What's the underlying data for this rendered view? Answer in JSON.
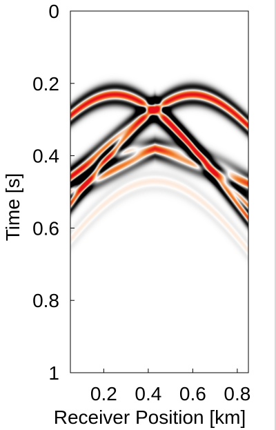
{
  "chart_data": {
    "type": "heatmap",
    "title": "",
    "xlabel": "Receiver Position [km]",
    "ylabel": "Time [s]",
    "xlim": [
      0.05,
      0.85
    ],
    "ylim": [
      1.0,
      0.0
    ],
    "x_ticks": [
      0.2,
      0.4,
      0.6,
      0.8
    ],
    "x_tick_labels": [
      "0.2",
      "0.4",
      "0.6",
      "0.8"
    ],
    "y_ticks": [
      0,
      0.2,
      0.4,
      0.6,
      0.8,
      1
    ],
    "y_tick_labels": [
      "0",
      "0.2",
      "0.4",
      "0.6",
      "0.8",
      "1"
    ],
    "grid": false,
    "colormap": {
      "negative": "#000000",
      "zero": "#ffffff",
      "positive_mid": "#f07e2a",
      "positive_peak": "#e8101a"
    },
    "events": [
      {
        "kind": "hyperbola",
        "apex_x": 0.25,
        "apex_t": 0.23,
        "velocity_km_s": 2.3,
        "amplitude": 1.0
      },
      {
        "kind": "hyperbola",
        "apex_x": 0.6,
        "apex_t": 0.23,
        "velocity_km_s": 2.3,
        "amplitude": 1.0
      },
      {
        "kind": "linear",
        "x_start": 0.05,
        "t_start": 0.46,
        "x_end": 0.43,
        "t_end": 0.26,
        "amplitude": 0.8
      },
      {
        "kind": "linear",
        "x_start": 0.43,
        "t_start": 0.26,
        "x_end": 0.85,
        "t_end": 0.54,
        "amplitude": 0.8
      },
      {
        "kind": "linear",
        "x_start": 0.05,
        "t_start": 0.5,
        "x_end": 0.43,
        "t_end": 0.38,
        "amplitude": 0.6
      },
      {
        "kind": "linear",
        "x_start": 0.43,
        "t_start": 0.38,
        "x_end": 0.85,
        "t_end": 0.48,
        "amplitude": 0.6
      },
      {
        "kind": "hyperbola",
        "apex_x": 0.43,
        "apex_t": 0.38,
        "velocity_km_s": 3.0,
        "amplitude": 0.35
      },
      {
        "kind": "hyperbola",
        "apex_x": 0.43,
        "apex_t": 0.47,
        "velocity_km_s": 1.8,
        "amplitude": 0.08
      }
    ]
  }
}
